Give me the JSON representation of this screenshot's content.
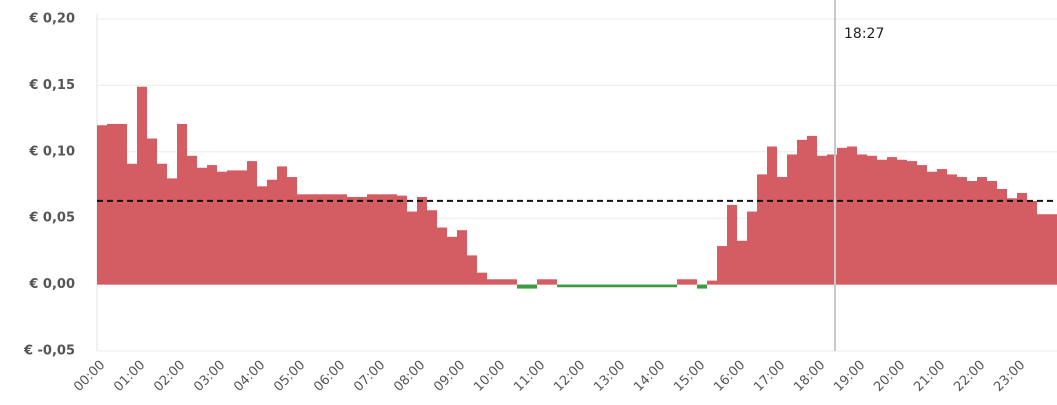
{
  "chart_data": {
    "type": "bar",
    "categories": [
      "00:00",
      null,
      null,
      null,
      "01:00",
      null,
      null,
      null,
      "02:00",
      null,
      null,
      null,
      "03:00",
      null,
      null,
      null,
      "04:00",
      null,
      null,
      null,
      "05:00",
      null,
      null,
      null,
      "06:00",
      null,
      null,
      null,
      "07:00",
      null,
      null,
      null,
      "08:00",
      null,
      null,
      null,
      "09:00",
      null,
      null,
      null,
      "10:00",
      null,
      null,
      null,
      "11:00",
      null,
      null,
      null,
      "12:00",
      null,
      null,
      null,
      "13:00",
      null,
      null,
      null,
      "14:00",
      null,
      null,
      null,
      "15:00",
      null,
      null,
      null,
      "16:00",
      null,
      null,
      null,
      "17:00",
      null,
      null,
      null,
      "18:00",
      null,
      null,
      null,
      "19:00",
      null,
      null,
      null,
      "20:00",
      null,
      null,
      null,
      "21:00",
      null,
      null,
      null,
      "22:00",
      null,
      null,
      null,
      "23:00",
      null,
      null,
      null
    ],
    "values": [
      0.12,
      0.121,
      0.121,
      0.091,
      0.149,
      0.11,
      0.091,
      0.08,
      0.121,
      0.097,
      0.088,
      0.09,
      0.085,
      0.086,
      0.086,
      0.093,
      0.074,
      0.079,
      0.089,
      0.081,
      0.068,
      0.068,
      0.068,
      0.068,
      0.068,
      0.066,
      0.066,
      0.068,
      0.068,
      0.068,
      0.067,
      0.055,
      0.066,
      0.056,
      0.043,
      0.036,
      0.041,
      0.022,
      0.009,
      0.004,
      0.004,
      0.004,
      -0.003,
      -0.003,
      0.004,
      0.004,
      -0.002,
      -0.002,
      -0.002,
      -0.002,
      -0.002,
      -0.002,
      -0.002,
      -0.002,
      -0.002,
      -0.002,
      -0.002,
      -0.002,
      0.004,
      0.004,
      -0.003,
      0.003,
      0.029,
      0.06,
      0.033,
      0.055,
      0.083,
      0.104,
      0.081,
      0.098,
      0.109,
      0.112,
      0.097,
      0.098,
      0.103,
      0.104,
      0.098,
      0.097,
      0.094,
      0.096,
      0.094,
      0.093,
      0.09,
      0.085,
      0.087,
      0.083,
      0.081,
      0.078,
      0.081,
      0.078,
      0.072,
      0.065,
      0.069,
      0.063,
      0.053,
      0.053
    ],
    "color": "#d45c63",
    "negative_color": "#3f9b3f",
    "average": 0.063,
    "marker": {
      "label": "18:27"
    },
    "ylim": [
      -0.05,
      0.2
    ],
    "yticks": [
      {
        "value": -0.05,
        "label": "€ -0,05"
      },
      {
        "value": 0,
        "label": "€ 0,00"
      },
      {
        "value": 0.05,
        "label": "€ 0,05"
      },
      {
        "value": 0.1,
        "label": "€ 0,10"
      },
      {
        "value": 0.15,
        "label": "€ 0,15"
      },
      {
        "value": 0.2,
        "label": "€ 0,20"
      }
    ],
    "grid": true
  }
}
